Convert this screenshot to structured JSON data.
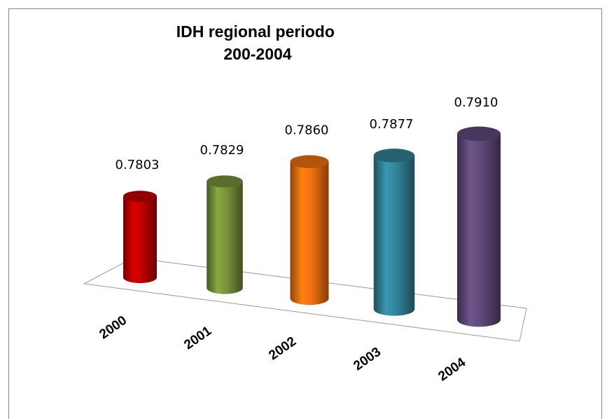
{
  "chart_data": {
    "type": "cylinder",
    "title": [
      "IDH regional periodo",
      "200-2004"
    ],
    "categories": [
      "2000",
      "2001",
      "2002",
      "2003",
      "2004"
    ],
    "values": [
      0.7803,
      0.7829,
      0.786,
      0.7877,
      0.791
    ],
    "value_labels": [
      "0.7803",
      "0.7829",
      "0.7860",
      "0.7877",
      "0.7910"
    ],
    "colors": [
      "#c00000",
      "#77933c",
      "#f07010",
      "#31849b",
      "#60497a"
    ],
    "ylim": [
      0.772,
      0.792
    ]
  }
}
